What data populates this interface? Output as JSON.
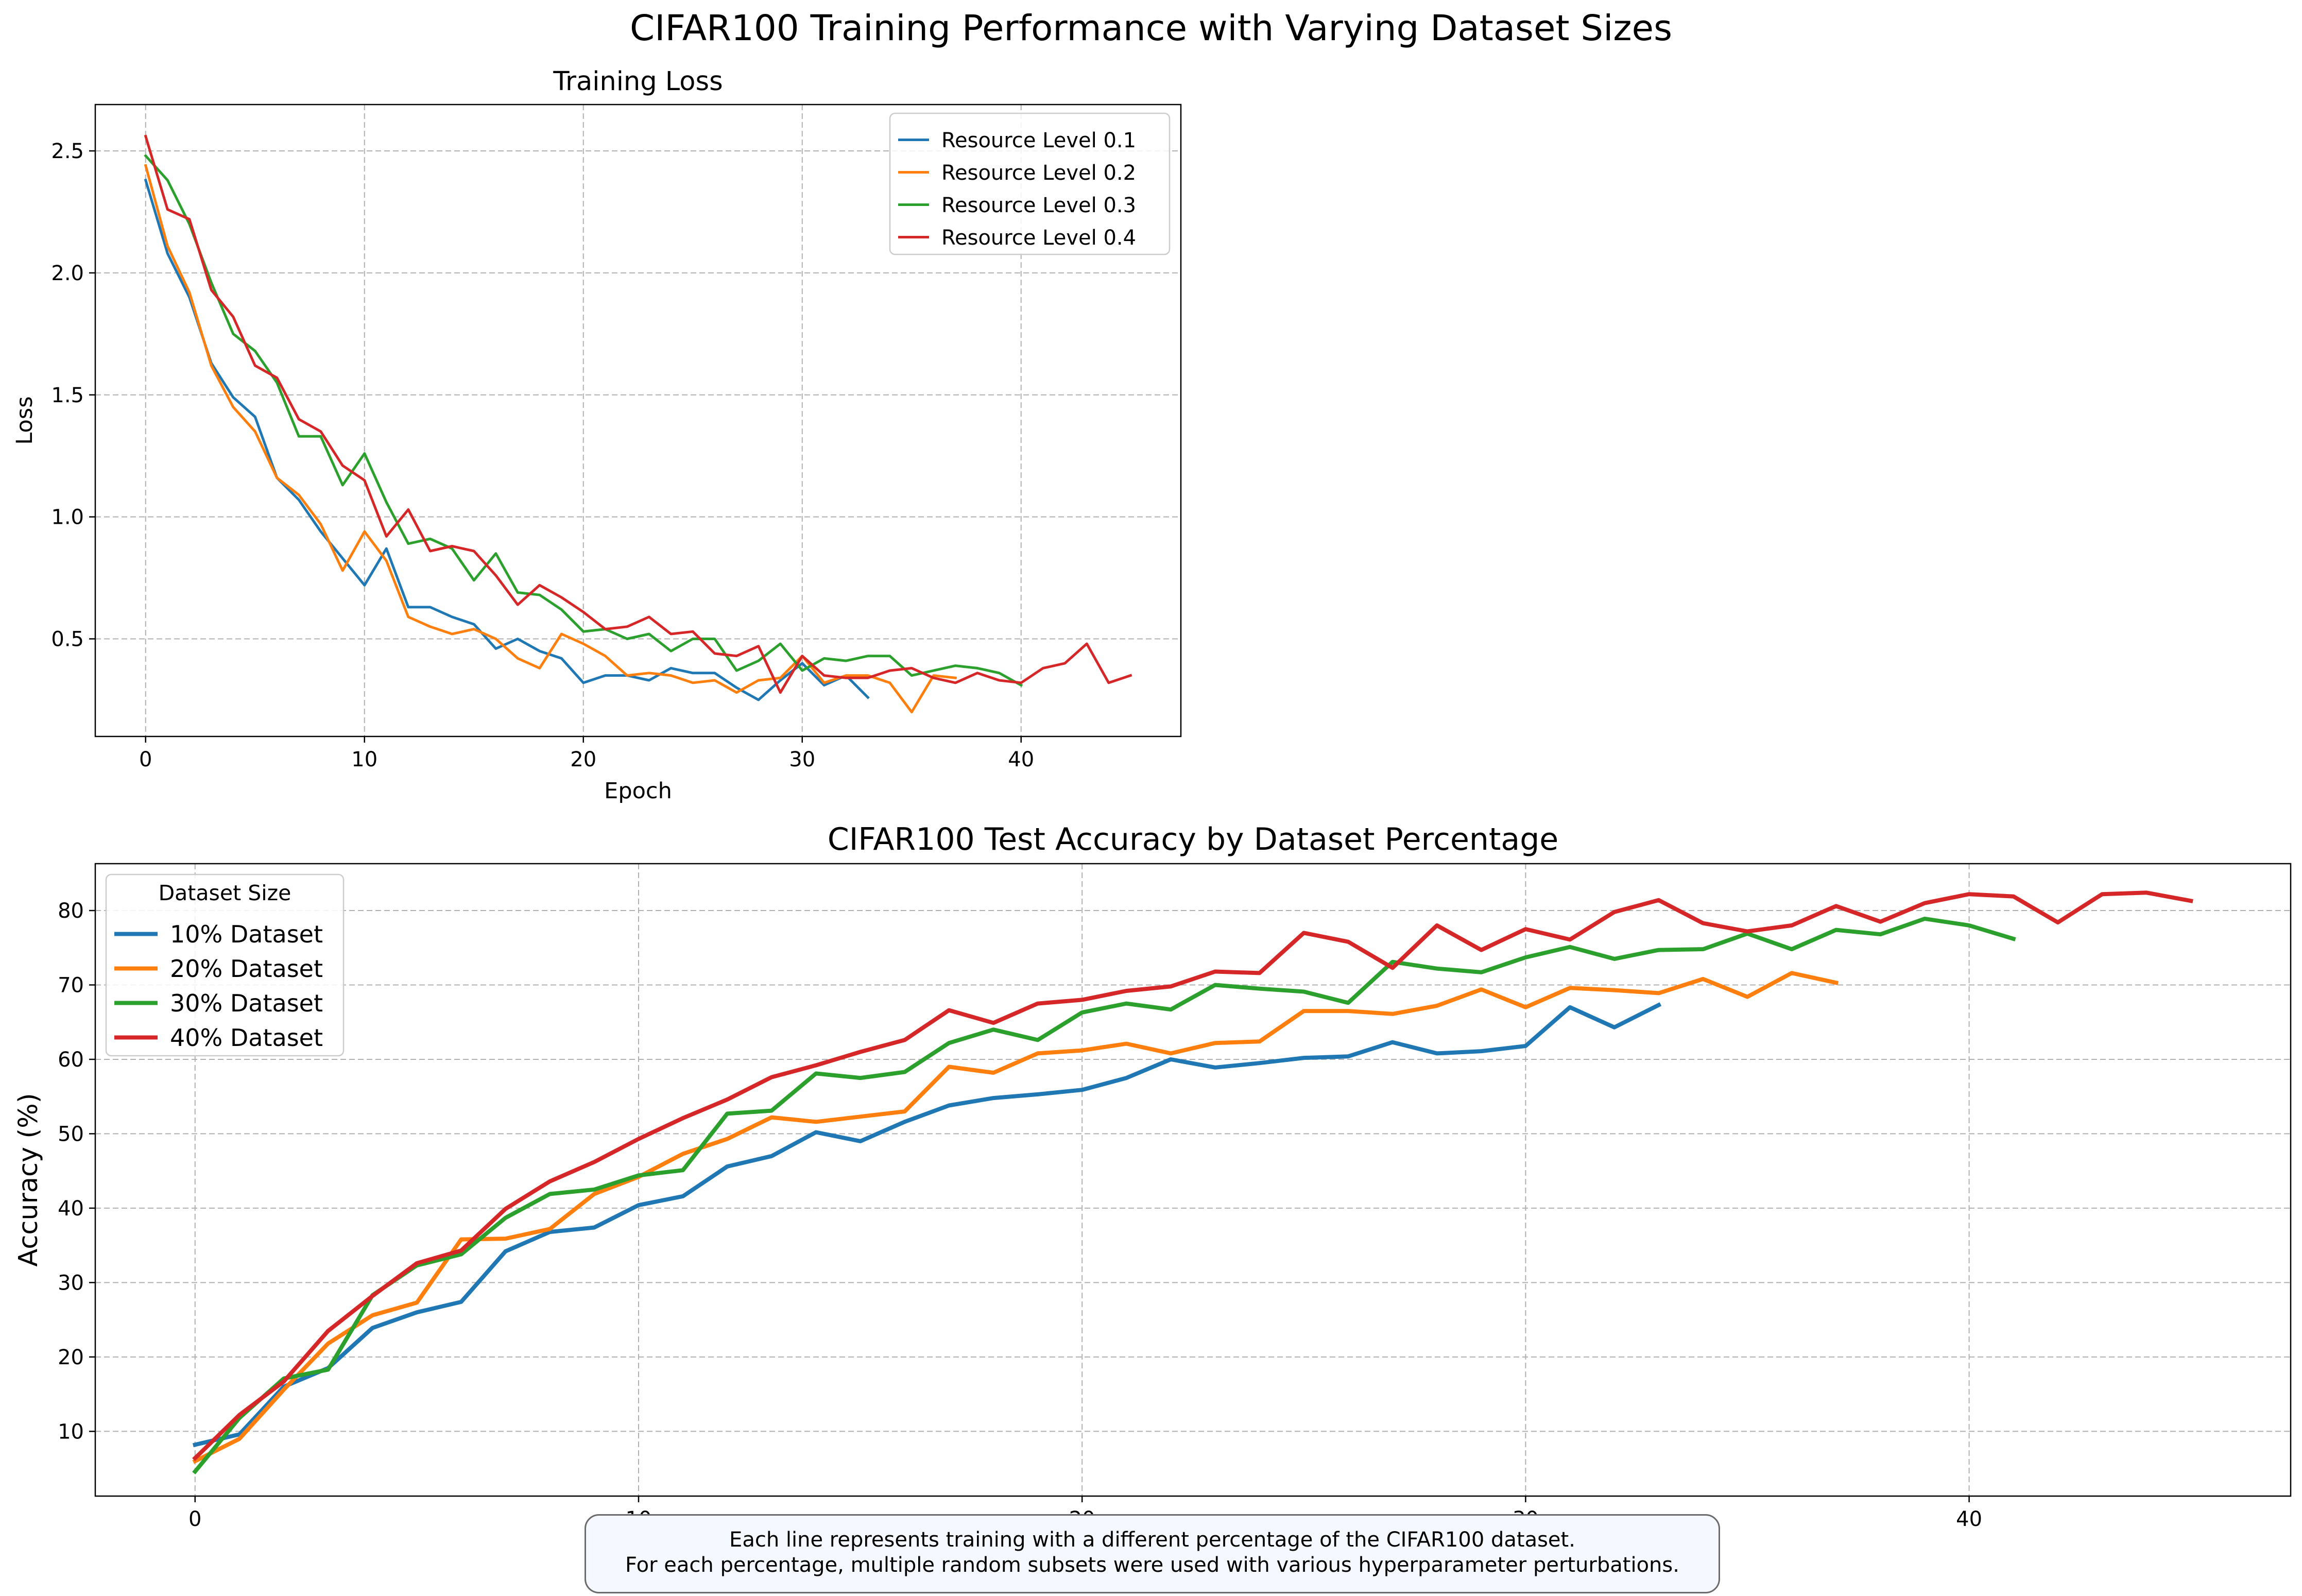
{
  "figure": {
    "suptitle": "CIFAR100 Training Performance with Varying Dataset Sizes",
    "note_lines": [
      "Each line represents training with a different percentage of the CIFAR100 dataset.",
      "For each percentage, multiple random subsets were used with various hyperparameter perturbations."
    ]
  },
  "chart_data": [
    {
      "type": "line",
      "title": "Training Loss",
      "xlabel": "Epoch",
      "ylabel": "Loss",
      "xlim": [
        -2.3,
        47.3
      ],
      "ylim": [
        0.1,
        2.69
      ],
      "xticks": [
        0,
        10,
        20,
        30,
        40
      ],
      "yticks": [
        0.5,
        1.0,
        1.5,
        2.0,
        2.5
      ],
      "ytick_labels": [
        "0.5",
        "1.0",
        "1.5",
        "2.0",
        "2.5"
      ],
      "grid": true,
      "legend_position": "upper right",
      "series": [
        {
          "name": "Resource Level 0.1",
          "color": "#1f77b4",
          "values": [
            2.38,
            2.08,
            1.9,
            1.63,
            1.49,
            1.41,
            1.16,
            1.07,
            0.94,
            0.83,
            0.72,
            0.87,
            0.63,
            0.63,
            0.59,
            0.56,
            0.46,
            0.5,
            0.45,
            0.42,
            0.32,
            0.35,
            0.35,
            0.33,
            0.38,
            0.36,
            0.36,
            0.3,
            0.25,
            0.33,
            0.4,
            0.31,
            0.35,
            0.26
          ]
        },
        {
          "name": "Resource Level 0.2",
          "color": "#ff7f0e",
          "values": [
            2.44,
            2.11,
            1.92,
            1.62,
            1.45,
            1.35,
            1.16,
            1.09,
            0.97,
            0.78,
            0.94,
            0.82,
            0.59,
            0.55,
            0.52,
            0.54,
            0.5,
            0.42,
            0.38,
            0.52,
            0.48,
            0.43,
            0.35,
            0.36,
            0.35,
            0.32,
            0.33,
            0.28,
            0.33,
            0.34,
            0.43,
            0.32,
            0.35,
            0.35,
            0.32,
            0.2,
            0.35,
            0.34
          ]
        },
        {
          "name": "Resource Level 0.3",
          "color": "#2ca02c",
          "values": [
            2.48,
            2.38,
            2.2,
            1.96,
            1.75,
            1.68,
            1.55,
            1.33,
            1.33,
            1.13,
            1.26,
            1.06,
            0.89,
            0.91,
            0.87,
            0.74,
            0.85,
            0.69,
            0.68,
            0.62,
            0.53,
            0.54,
            0.5,
            0.52,
            0.45,
            0.5,
            0.5,
            0.37,
            0.41,
            0.48,
            0.37,
            0.42,
            0.41,
            0.43,
            0.43,
            0.35,
            0.37,
            0.39,
            0.38,
            0.36,
            0.31
          ]
        },
        {
          "name": "Resource Level 0.4",
          "color": "#d62728",
          "values": [
            2.56,
            2.26,
            2.22,
            1.93,
            1.82,
            1.62,
            1.57,
            1.4,
            1.35,
            1.21,
            1.15,
            0.92,
            1.03,
            0.86,
            0.88,
            0.86,
            0.76,
            0.64,
            0.72,
            0.67,
            0.61,
            0.54,
            0.55,
            0.59,
            0.52,
            0.53,
            0.44,
            0.43,
            0.47,
            0.28,
            0.43,
            0.35,
            0.34,
            0.34,
            0.37,
            0.38,
            0.34,
            0.32,
            0.36,
            0.33,
            0.32,
            0.38,
            0.4,
            0.48,
            0.32,
            0.35
          ]
        }
      ]
    },
    {
      "type": "line",
      "title": "CIFAR100 Test Accuracy by Dataset Percentage",
      "xlabel": "Epoch",
      "ylabel": "Accuracy (%)",
      "xlim": [
        -2.25,
        47.25
      ],
      "ylim": [
        1.3,
        86.3
      ],
      "xticks": [
        0,
        10,
        20,
        30,
        40
      ],
      "yticks": [
        10,
        20,
        30,
        40,
        50,
        60,
        70,
        80
      ],
      "grid": true,
      "legend_title": "Dataset Size",
      "legend_position": "upper left",
      "series": [
        {
          "name": "10% Dataset",
          "color": "#1f77b4",
          "values": [
            8.2,
            9.6,
            16.0,
            18.5,
            23.9,
            26.0,
            27.4,
            34.2,
            36.8,
            37.4,
            40.4,
            41.6,
            45.6,
            47.0,
            50.2,
            49.0,
            51.6,
            53.8,
            54.8,
            55.3,
            55.9,
            57.5,
            60.0,
            58.9,
            59.5,
            60.2,
            60.4,
            62.3,
            60.8,
            61.1,
            61.8,
            67.0,
            64.3,
            67.3
          ]
        },
        {
          "name": "20% Dataset",
          "color": "#ff7f0e",
          "values": [
            6.0,
            9.0,
            15.6,
            21.8,
            25.6,
            27.3,
            35.8,
            35.9,
            37.2,
            41.9,
            44.2,
            47.3,
            49.3,
            52.2,
            51.6,
            52.3,
            53.0,
            59.0,
            58.2,
            60.8,
            61.2,
            62.1,
            60.8,
            62.2,
            62.4,
            66.5,
            66.5,
            66.1,
            67.2,
            69.4,
            67.0,
            69.6,
            69.3,
            68.9,
            70.8,
            68.4,
            71.6,
            70.3
          ]
        },
        {
          "name": "30% Dataset",
          "color": "#2ca02c",
          "values": [
            4.6,
            11.8,
            17.1,
            18.3,
            28.3,
            32.3,
            33.8,
            38.7,
            41.9,
            42.5,
            44.4,
            45.1,
            52.7,
            53.1,
            58.1,
            57.5,
            58.3,
            62.2,
            64.0,
            62.6,
            66.3,
            67.5,
            66.7,
            70.0,
            69.5,
            69.1,
            67.6,
            73.1,
            72.2,
            71.7,
            73.7,
            75.1,
            73.5,
            74.7,
            74.8,
            76.9,
            74.8,
            77.4,
            76.8,
            78.9,
            78.0,
            76.2
          ]
        },
        {
          "name": "40% Dataset",
          "color": "#d62728",
          "values": [
            6.4,
            12.2,
            16.7,
            23.5,
            28.2,
            32.6,
            34.3,
            39.9,
            43.6,
            46.2,
            49.3,
            52.1,
            54.6,
            57.6,
            59.2,
            61.0,
            62.6,
            66.6,
            64.9,
            67.5,
            68.0,
            69.2,
            69.8,
            71.8,
            71.6,
            77.0,
            75.8,
            72.3,
            78.0,
            74.7,
            77.5,
            76.1,
            79.8,
            81.4,
            78.3,
            77.2,
            78.0,
            80.6,
            78.5,
            81.0,
            82.2,
            81.9,
            78.4,
            82.2,
            82.4,
            81.3
          ]
        }
      ]
    }
  ]
}
